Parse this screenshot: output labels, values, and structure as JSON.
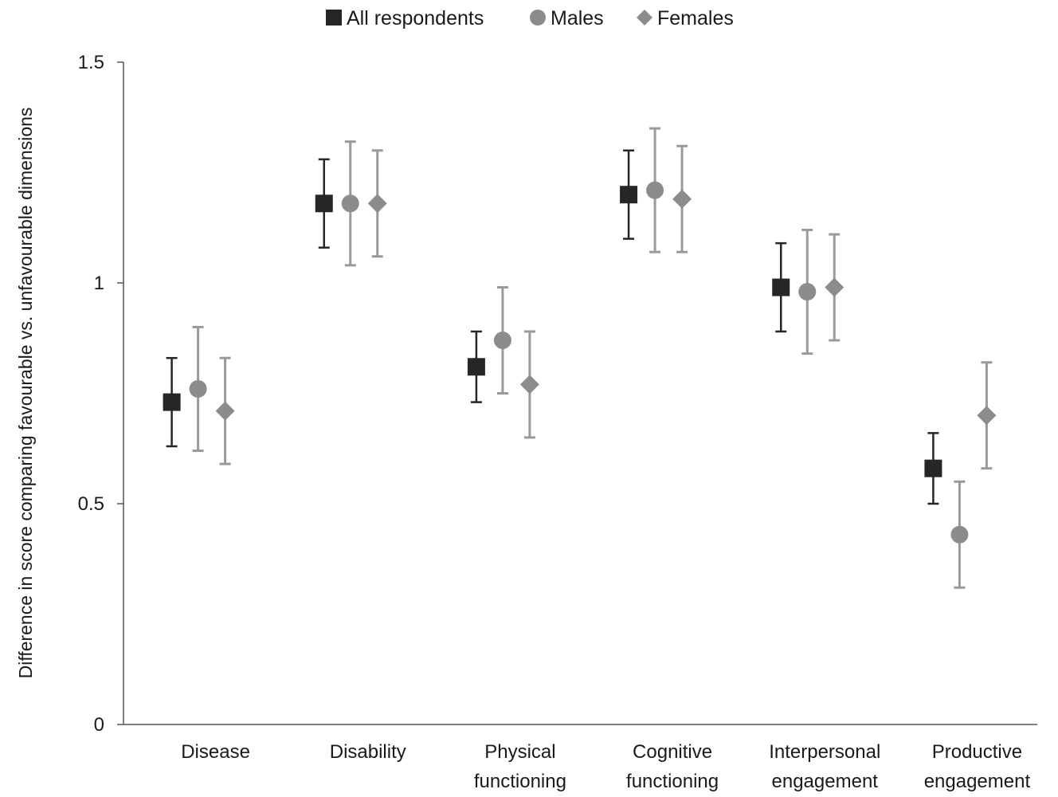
{
  "chart_data": {
    "type": "scatter",
    "title": "",
    "ylabel": "Difference in score comparing favourable vs. unfavourable dimensions",
    "xlabel": "",
    "ylim": [
      0,
      1.5
    ],
    "y_ticks": [
      {
        "value": 0,
        "label": "0"
      },
      {
        "value": 0.5,
        "label": "0.5"
      },
      {
        "value": 1,
        "label": "1"
      },
      {
        "value": 1.5,
        "label": "1.5"
      }
    ],
    "grid": false,
    "legend_position": "top",
    "categories": [
      [
        "Disease"
      ],
      [
        "Disability"
      ],
      [
        "Physical",
        "functioning"
      ],
      [
        "Cognitive",
        "functioning"
      ],
      [
        "Interpersonal",
        "engagement"
      ],
      [
        "Productive",
        "engagement"
      ]
    ],
    "series": [
      {
        "name": "All respondents",
        "marker": "square",
        "color": "#262626",
        "error_color": "#262626",
        "values": [
          0.73,
          1.18,
          0.81,
          1.2,
          0.99,
          0.58
        ],
        "lower": [
          0.63,
          1.08,
          0.73,
          1.1,
          0.89,
          0.5
        ],
        "upper": [
          0.83,
          1.28,
          0.89,
          1.3,
          1.09,
          0.66
        ]
      },
      {
        "name": "Males",
        "marker": "circle",
        "color": "#8c8c8c",
        "error_color": "#9a9a9a",
        "values": [
          0.76,
          1.18,
          0.87,
          1.21,
          0.98,
          0.43
        ],
        "lower": [
          0.62,
          1.04,
          0.75,
          1.07,
          0.84,
          0.31
        ],
        "upper": [
          0.9,
          1.32,
          0.99,
          1.35,
          1.12,
          0.55
        ]
      },
      {
        "name": "Females",
        "marker": "diamond",
        "color": "#8c8c8c",
        "error_color": "#9a9a9a",
        "values": [
          0.71,
          1.18,
          0.77,
          1.19,
          0.99,
          0.7
        ],
        "lower": [
          0.59,
          1.06,
          0.65,
          1.07,
          0.87,
          0.58
        ],
        "upper": [
          0.83,
          1.3,
          0.89,
          1.31,
          1.11,
          0.82
        ]
      }
    ]
  }
}
